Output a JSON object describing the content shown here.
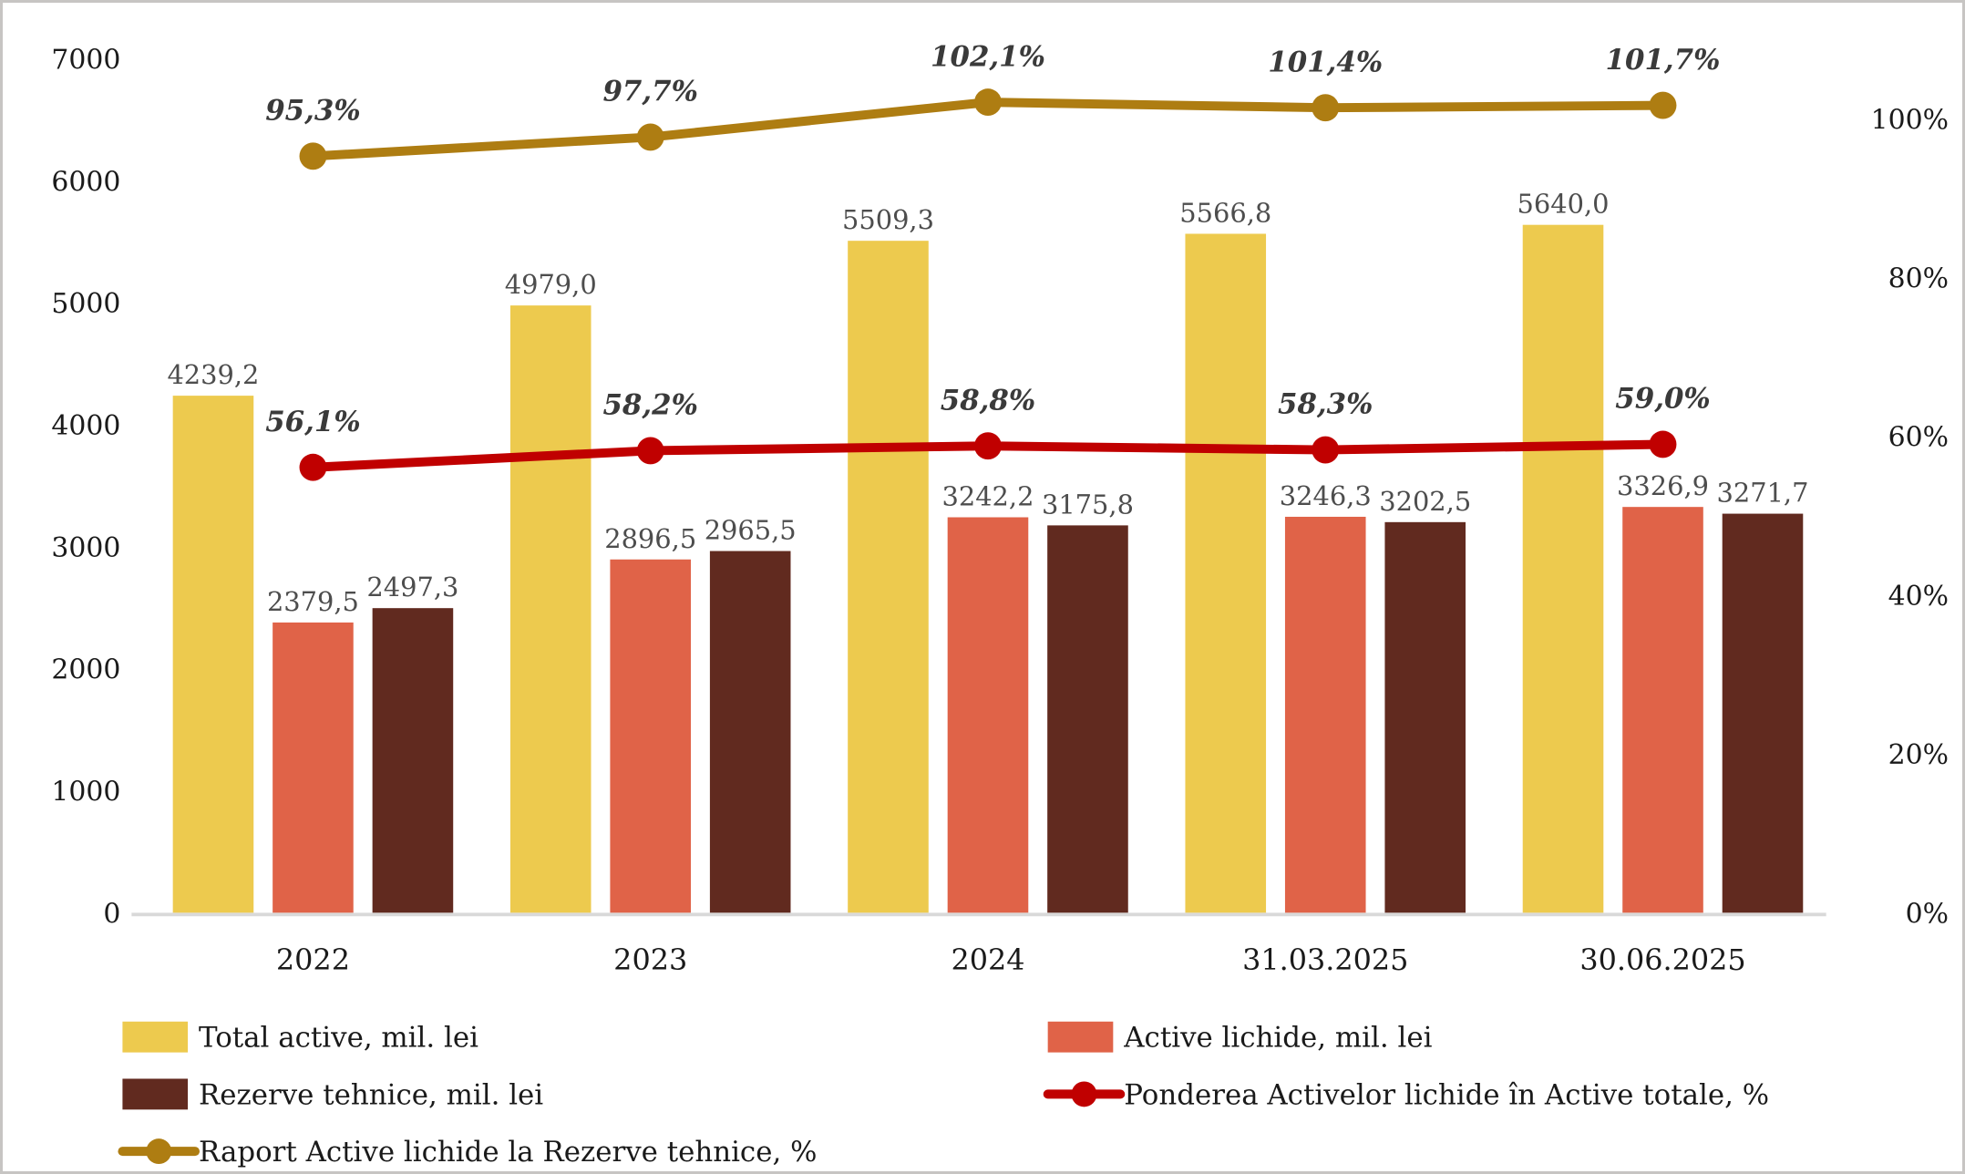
{
  "figure": {
    "background": "#ffffff",
    "frame_border_color": "#c7c5c3",
    "baseline_color": "#d9d9d9",
    "value_label_color": "#4d4d4d",
    "line_label_color": "#3a3a3a",
    "axis_label_color": "#1a1a1a"
  },
  "chart_data": {
    "type": "combo-bar-line",
    "title": "",
    "categories": [
      "2022",
      "2023",
      "2024",
      "31.03.2025",
      "30.06.2025"
    ],
    "left_axis": {
      "min": 0,
      "max": 7000,
      "step": 1000,
      "tick_labels": [
        "0",
        "1000",
        "2000",
        "3000",
        "4000",
        "5000",
        "6000",
        "7000"
      ],
      "grid": false
    },
    "right_axis": {
      "min": 0,
      "max": 100,
      "step": 20,
      "unit": "%",
      "tick_labels": [
        "0%",
        "20%",
        "40%",
        "60%",
        "80%",
        "100%"
      ],
      "grid": false
    },
    "bar_series": [
      {
        "name": "Total active, mil. lei",
        "color": "#EDCA4E",
        "values": [
          4239.2,
          4979.0,
          5509.3,
          5566.8,
          5640.0
        ],
        "labels": [
          "4239,2",
          "4979,0",
          "5509,3",
          "5566,8",
          "5640,0"
        ]
      },
      {
        "name": "Active lichide, mil. lei",
        "color": "#E06348",
        "values": [
          2379.5,
          2896.5,
          3242.2,
          3246.3,
          3326.9
        ],
        "labels": [
          "2379,5",
          "2896,5",
          "3242,2",
          "3246,3",
          "3326,9"
        ]
      },
      {
        "name": "Rezerve tehnice, mil. lei",
        "color": "#612A1F",
        "values": [
          2497.3,
          2965.5,
          3175.8,
          3202.5,
          3271.7
        ],
        "labels": [
          "2497,3",
          "2965,5",
          "3175,8",
          "3202,5",
          "3271,7"
        ]
      }
    ],
    "line_series": [
      {
        "name": "Ponderea Activelor lichide în Active totale, %",
        "color": "#C00000",
        "axis": "right",
        "values": [
          56.1,
          58.2,
          58.8,
          58.3,
          59.0
        ],
        "labels": [
          "56,1%",
          "58,2%",
          "58,8%",
          "58,3%",
          "59,0%"
        ]
      },
      {
        "name": "Raport Active lichide la Rezerve tehnice, %",
        "color": "#AE7D12",
        "axis": "right",
        "values": [
          95.3,
          97.7,
          102.1,
          101.4,
          101.7
        ],
        "labels": [
          "95,3%",
          "97,7%",
          "102,1%",
          "101,4%",
          "101,7%"
        ]
      }
    ],
    "legend": {
      "position": "bottom",
      "items": [
        {
          "label": "Total active, mil. lei",
          "swatch": "bar",
          "color": "#EDCA4E",
          "row": 0,
          "col": 0
        },
        {
          "label": "Active lichide, mil. lei",
          "swatch": "bar",
          "color": "#E06348",
          "row": 0,
          "col": 1
        },
        {
          "label": "Rezerve tehnice, mil. lei",
          "swatch": "bar",
          "color": "#612A1F",
          "row": 1,
          "col": 0
        },
        {
          "label": "Ponderea Activelor lichide în Active totale, %",
          "swatch": "line",
          "color": "#C00000",
          "row": 1,
          "col": 1
        },
        {
          "label": "Raport Active lichide la Rezerve tehnice, %",
          "swatch": "line",
          "color": "#AE7D12",
          "row": 2,
          "col": 0
        }
      ]
    }
  }
}
